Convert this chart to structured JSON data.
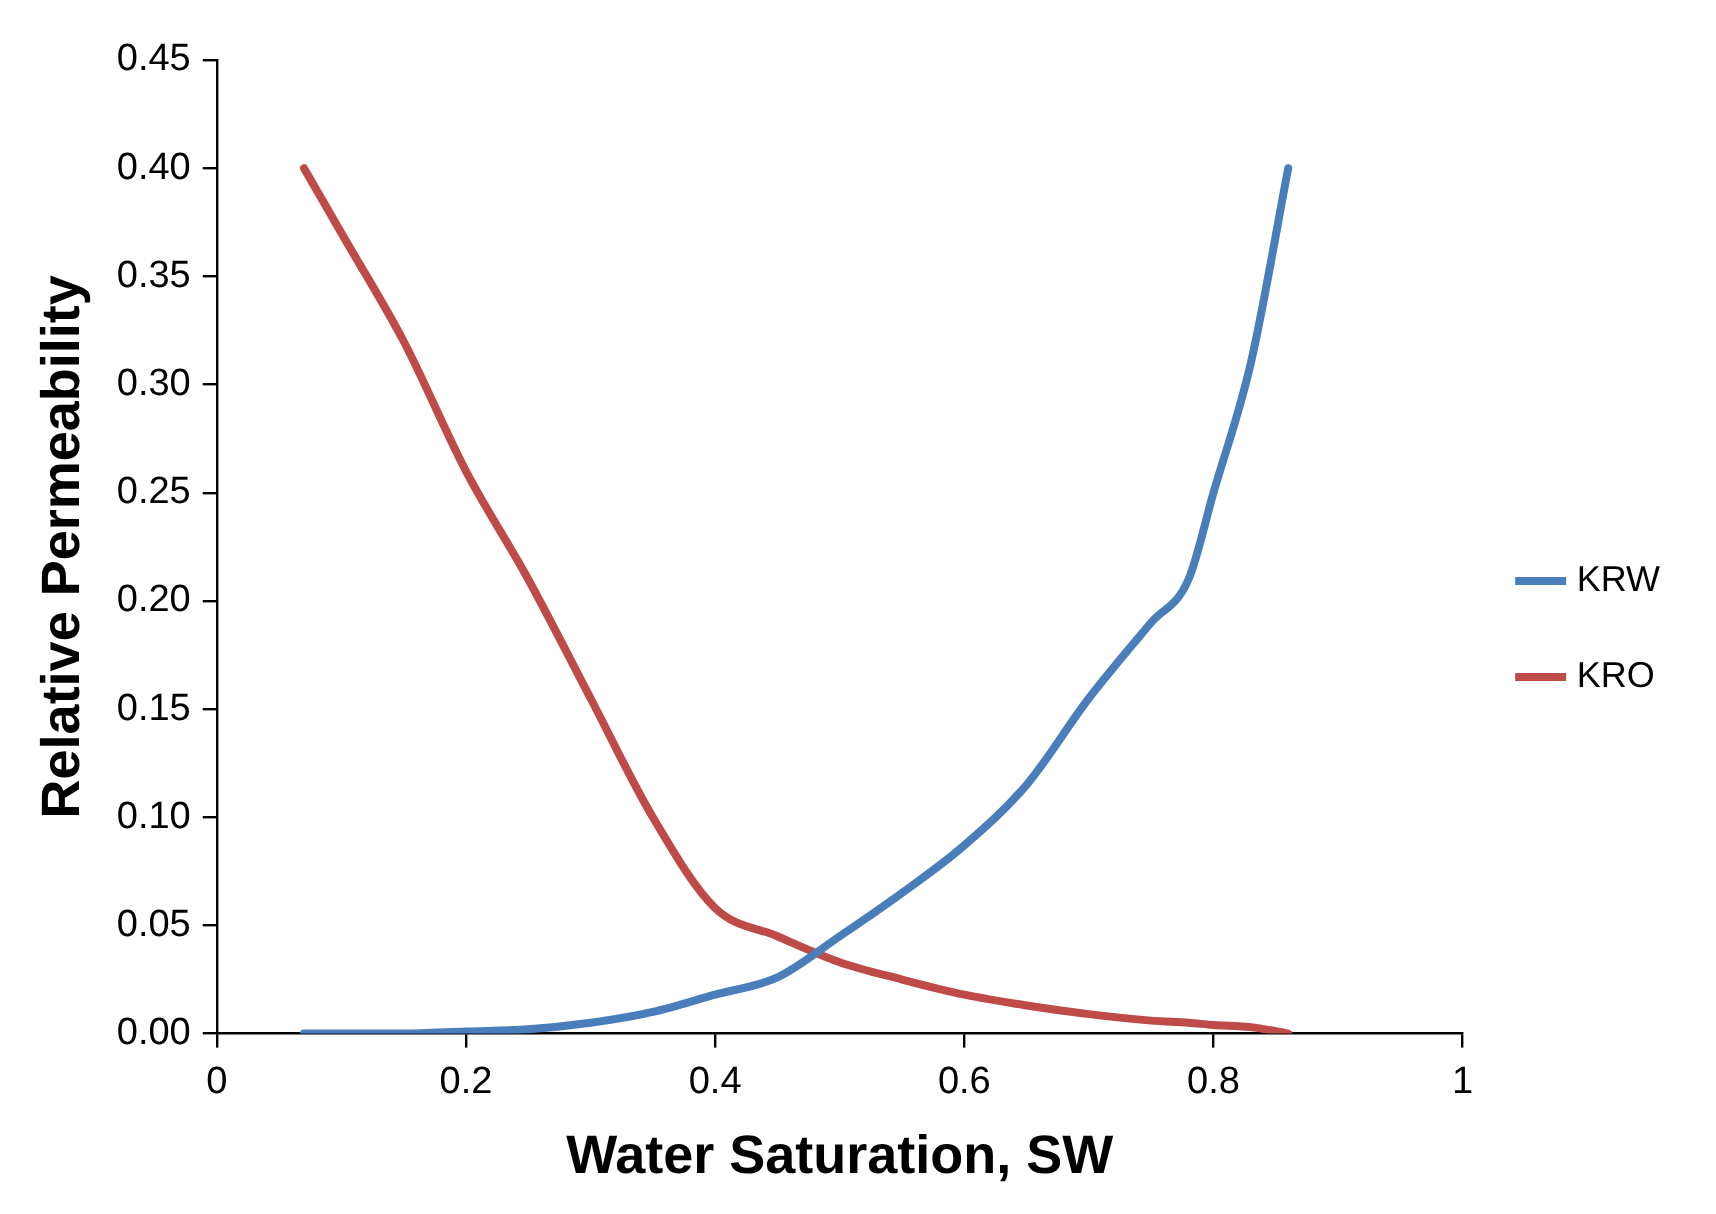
{
  "chart_data": {
    "type": "line",
    "xlabel": "Water Saturation, SW",
    "ylabel": "Relative Permeability",
    "xlim": [
      0,
      1
    ],
    "xticks": [
      0,
      0.2,
      0.4,
      0.6,
      0.8,
      1
    ],
    "ylim": [
      0,
      0.45
    ],
    "yticks": [
      {
        "value": 0,
        "label": "0.00"
      },
      {
        "value": 0.05,
        "label": "0.05"
      },
      {
        "value": 0.1,
        "label": "0.10"
      },
      {
        "value": 0.15,
        "label": "0.15"
      },
      {
        "value": 0.2,
        "label": "0.20"
      },
      {
        "value": 0.25,
        "label": "0.25"
      },
      {
        "value": 0.3,
        "label": "0.30"
      },
      {
        "value": 0.35,
        "label": "0.35"
      },
      {
        "value": 0.4,
        "label": "0.40"
      },
      {
        "value": 0.45,
        "label": "0.45"
      }
    ],
    "x": [
      0.07,
      0.1,
      0.15,
      0.2,
      0.25,
      0.3,
      0.35,
      0.4,
      0.45,
      0.5,
      0.55,
      0.6,
      0.65,
      0.7,
      0.75,
      0.78,
      0.8,
      0.83,
      0.86
    ],
    "series": [
      {
        "name": "KRW",
        "color": "#4a7ebb",
        "values": [
          0,
          0,
          0,
          0.001,
          0.002,
          0.005,
          0.01,
          0.018,
          0.026,
          0.045,
          0.065,
          0.087,
          0.115,
          0.155,
          0.19,
          0.21,
          0.25,
          0.31,
          0.4
        ]
      },
      {
        "name": "KRO",
        "color": "#be4b48",
        "values": [
          0.4,
          0.37,
          0.32,
          0.26,
          0.21,
          0.155,
          0.1,
          0.058,
          0.045,
          0.033,
          0.025,
          0.018,
          0.013,
          0.009,
          0.006,
          0.005,
          0.004,
          0.003,
          0
        ]
      }
    ],
    "grid": false,
    "legend": "right",
    "marker": "none",
    "line_style": "solid"
  }
}
